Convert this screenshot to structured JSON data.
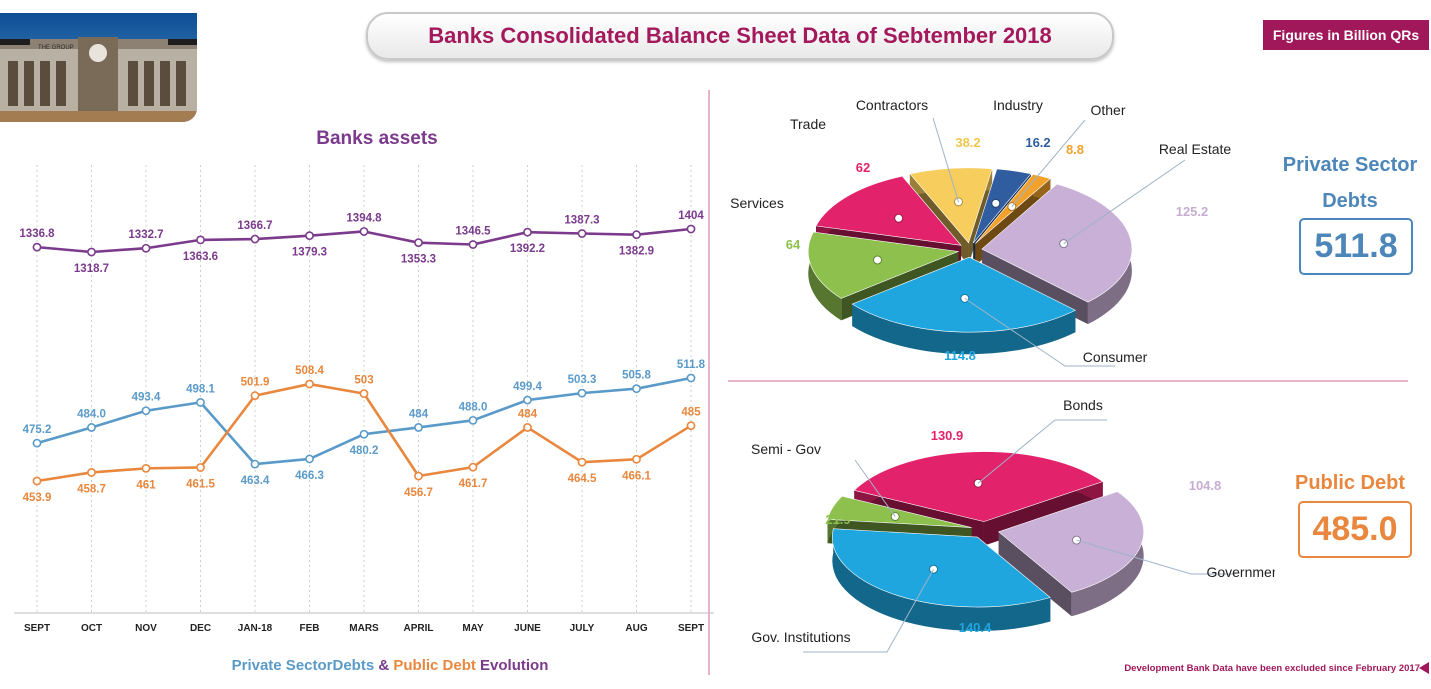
{
  "header": {
    "title": "Banks Consolidated Balance Sheet Data of Sebtember 2018",
    "units_badge": "Figures in Billion QRs"
  },
  "photo": {
    "caption": "building-photo",
    "sign_text": "THE GROUP"
  },
  "colors": {
    "assets": "#7b3a8c",
    "private": "#5a9ac9",
    "public": "#e8873d",
    "accent": "#a0185a",
    "trade": "#e2226b",
    "contractors": "#f7cd5d",
    "industry": "#2f5d9f",
    "other": "#f2a22b",
    "real_estate": "#c9b0d6",
    "consumer": "#1fa6de",
    "services": "#8dc04d"
  },
  "chart_data": [
    {
      "type": "line",
      "title": "Banks assets",
      "categories": [
        "SEPT",
        "OCT",
        "NOV",
        "DEC",
        "JAN-18",
        "FEB",
        "MARS",
        "APRIL",
        "MAY",
        "JUNE",
        "JULY",
        "AUG",
        "SEPT"
      ],
      "series": [
        {
          "name": "",
          "values": [
            1336.8,
            1318.7,
            1332.7,
            1363.6,
            1366.7,
            1379.3,
            1394.8,
            1353.3,
            1346.5,
            1392.2,
            1387.3,
            1382.9,
            1404
          ],
          "labels": [
            "1336.8",
            "1318.7",
            "1332.7",
            "1363.6",
            "1366.7",
            "1379.3",
            "1394.8",
            "1353.3",
            "1346.5",
            "1392.2",
            "1387.3",
            "1382.9",
            "1404"
          ]
        }
      ],
      "grid": "vertical-dashed"
    },
    {
      "type": "line",
      "caption": {
        "part1": "Private SectorDebts",
        "amp": "&",
        "part2": "Public Debt",
        "part3": "Evolution"
      },
      "categories": [
        "SEPT",
        "OCT",
        "NOV",
        "DEC",
        "JAN-18",
        "FEB",
        "MARS",
        "APRIL",
        "MAY",
        "JUNE",
        "JULY",
        "AUG",
        "SEPT"
      ],
      "series": [
        {
          "name": "Private SectorDebts",
          "values": [
            475.2,
            484.0,
            493.4,
            498.1,
            463.4,
            466.3,
            480.2,
            484,
            488.0,
            499.4,
            503.3,
            505.8,
            511.8
          ],
          "labels": [
            "475.2",
            "484.0",
            "493.4",
            "498.1",
            "463.4",
            "466.3",
            "480.2",
            "484",
            "488.0",
            "499.4",
            "503.3",
            "505.8",
            "511.8"
          ]
        },
        {
          "name": "Public Debt",
          "values": [
            453.9,
            458.7,
            461,
            461.5,
            501.9,
            508.4,
            503,
            456.7,
            461.7,
            484,
            464.5,
            466.1,
            485
          ],
          "labels": [
            "453.9",
            "458.7",
            "461",
            "461.5",
            "501.9",
            "508.4",
            "503",
            "456.7",
            "461.7",
            "484",
            "464.5",
            "466.1",
            "485"
          ]
        }
      ]
    },
    {
      "type": "pie",
      "title": "Private Sector Debts",
      "total": "511.8",
      "slices": [
        {
          "label": "Real Estate",
          "value": 125.2,
          "value_label": "125.2"
        },
        {
          "label": "Consumer",
          "value": 114.8,
          "value_label": "114.8"
        },
        {
          "label": "Services",
          "value": 64,
          "value_label": "64"
        },
        {
          "label": "Trade",
          "value": 62,
          "value_label": "62"
        },
        {
          "label": "Contractors",
          "value": 38.2,
          "value_label": "38.2"
        },
        {
          "label": "Industry",
          "value": 16.2,
          "value_label": "16.2"
        },
        {
          "label": "Other",
          "value": 8.8,
          "value_label": "8.8"
        }
      ]
    },
    {
      "type": "pie",
      "title": "Public Debt",
      "total": "485.0",
      "slices": [
        {
          "label": "Government",
          "value": 104.8,
          "value_label": "104.8"
        },
        {
          "label": "Gov. Institutions",
          "value": 140.4,
          "value_label": "140.4"
        },
        {
          "label": "Semi - Gov",
          "value": 21.9,
          "value_label": "21.9"
        },
        {
          "label": "Bonds",
          "value": 130.9,
          "value_label": "130.9"
        }
      ]
    }
  ],
  "side": {
    "private_label": "Private Sector Debts",
    "private_total": "511.8",
    "public_label": "Public Debt",
    "public_total": "485.0"
  },
  "footnote": "Development Bank Data have been excluded since February 2017"
}
